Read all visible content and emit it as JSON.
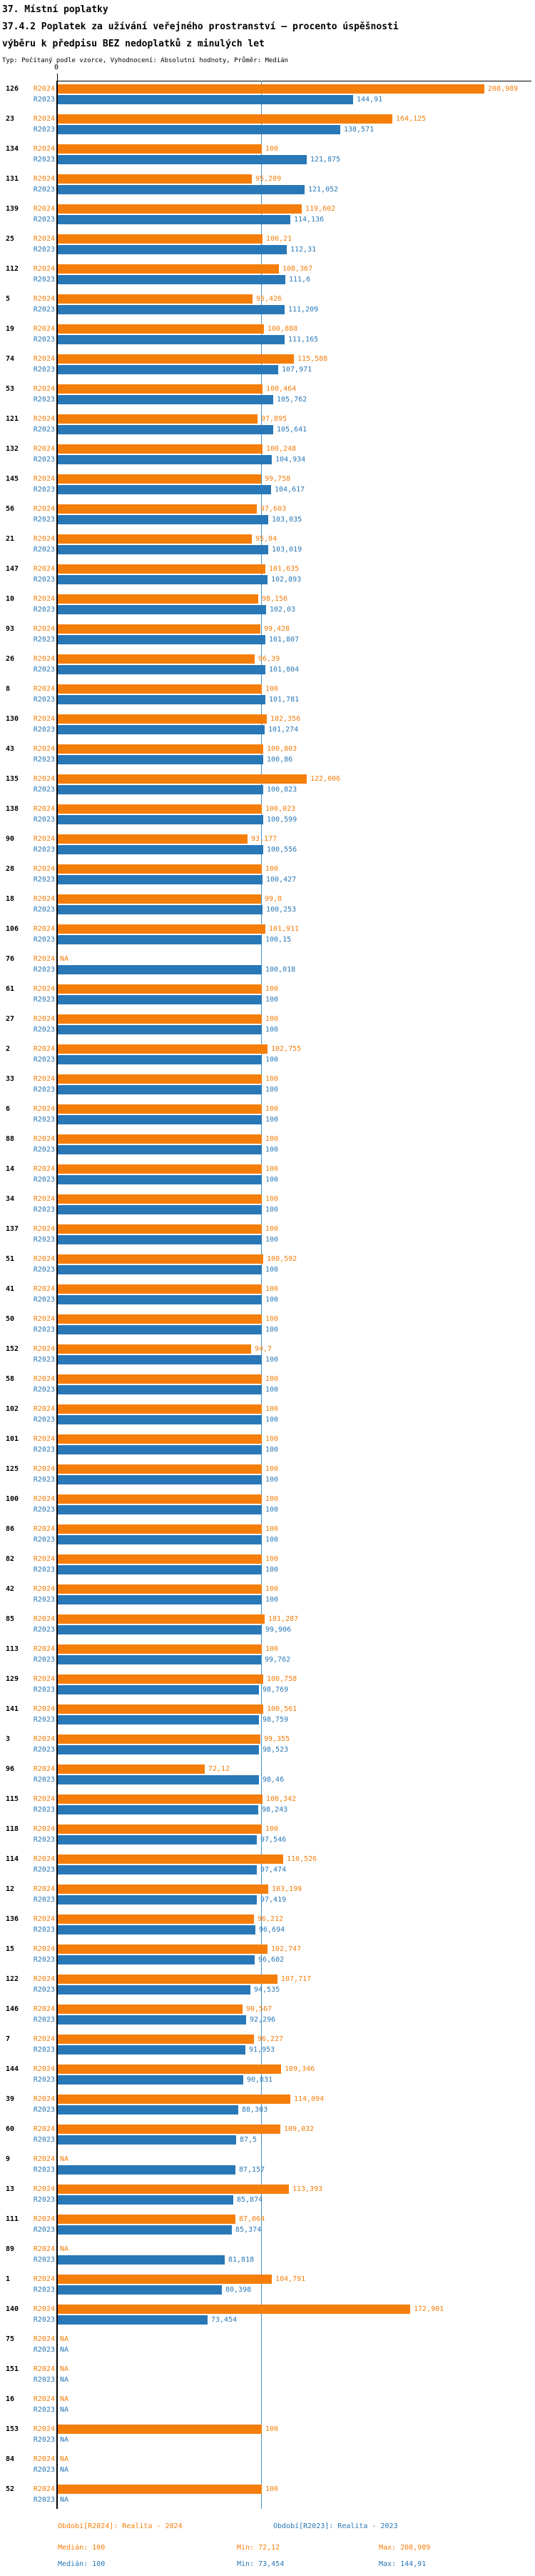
{
  "header": {
    "title": "37. Místní poplatky",
    "subtitle": "37.4.2 Poplatek za užívání veřejného prostranství – procento úspěšnosti výběru k předpisu BEZ nedoplatků z minulých let",
    "type_note": "Typ: Počítaný podle vzorce, Vyhodnocení: Absolutní hodnoty, Průměr: Medián"
  },
  "axis": {
    "zero_label": "0",
    "median_value": 100
  },
  "colors": {
    "r2024": "#f57e0b",
    "r2023": "#2878b8",
    "median_line": "#4393c3",
    "axis": "#000000"
  },
  "legend": {
    "period_2024": "Období[R2024]: Realita - 2024",
    "period_2023": "Období[R2023]: Realita - 2023",
    "median_2024": "Medián: 100",
    "min_2024": "Min: 72,12",
    "max_2024": "Max: 208,989",
    "median_2023": "Medián: 100",
    "min_2023": "Min: 73,454",
    "max_2023": "Max: 144,91"
  },
  "chart_data": {
    "type": "bar",
    "orientation": "horizontal",
    "title": "37.4.2 Poplatek za užívání veřejného prostranství – procento úspěšnosti výběru k předpisu BEZ nedoplatků z minulých let",
    "xlabel": "",
    "ylabel": "",
    "xlim": [
      0,
      235
    ],
    "median_reference_line": 100,
    "series_labels": [
      "R2024",
      "R2023"
    ],
    "na_text": "NA",
    "groups": [
      {
        "id": "126",
        "r2024": "208,989",
        "r2023": "144,91"
      },
      {
        "id": "23",
        "r2024": "164,125",
        "r2023": "138,571"
      },
      {
        "id": "134",
        "r2024": "100",
        "r2023": "121,875"
      },
      {
        "id": "131",
        "r2024": "95,209",
        "r2023": "121,052"
      },
      {
        "id": "139",
        "r2024": "119,602",
        "r2023": "114,136"
      },
      {
        "id": "25",
        "r2024": "100,21",
        "r2023": "112,31"
      },
      {
        "id": "112",
        "r2024": "108,367",
        "r2023": "111,6"
      },
      {
        "id": "5",
        "r2024": "95,426",
        "r2023": "111,209"
      },
      {
        "id": "19",
        "r2024": "100,888",
        "r2023": "111,165"
      },
      {
        "id": "74",
        "r2024": "115,588",
        "r2023": "107,971"
      },
      {
        "id": "53",
        "r2024": "100,464",
        "r2023": "105,762"
      },
      {
        "id": "121",
        "r2024": "97,895",
        "r2023": "105,641"
      },
      {
        "id": "132",
        "r2024": "100,248",
        "r2023": "104,934"
      },
      {
        "id": "145",
        "r2024": "99,758",
        "r2023": "104,617"
      },
      {
        "id": "56",
        "r2024": "97,603",
        "r2023": "103,035"
      },
      {
        "id": "21",
        "r2024": "95,04",
        "r2023": "103,019"
      },
      {
        "id": "147",
        "r2024": "101,635",
        "r2023": "102,893"
      },
      {
        "id": "10",
        "r2024": "98,156",
        "r2023": "102,03"
      },
      {
        "id": "93",
        "r2024": "99,428",
        "r2023": "101,807"
      },
      {
        "id": "26",
        "r2024": "96,39",
        "r2023": "101,804"
      },
      {
        "id": "8",
        "r2024": "100",
        "r2023": "101,781"
      },
      {
        "id": "130",
        "r2024": "102,356",
        "r2023": "101,274"
      },
      {
        "id": "43",
        "r2024": "100,803",
        "r2023": "100,86"
      },
      {
        "id": "135",
        "r2024": "122,006",
        "r2023": "100,823"
      },
      {
        "id": "138",
        "r2024": "100,023",
        "r2023": "100,599"
      },
      {
        "id": "90",
        "r2024": "93,177",
        "r2023": "100,556"
      },
      {
        "id": "28",
        "r2024": "100",
        "r2023": "100,427"
      },
      {
        "id": "18",
        "r2024": "99,8",
        "r2023": "100,253"
      },
      {
        "id": "106",
        "r2024": "101,911",
        "r2023": "100,15"
      },
      {
        "id": "76",
        "r2024": "NA",
        "r2023": "100,018"
      },
      {
        "id": "61",
        "r2024": "100",
        "r2023": "100"
      },
      {
        "id": "27",
        "r2024": "100",
        "r2023": "100"
      },
      {
        "id": "2",
        "r2024": "102,755",
        "r2023": "100"
      },
      {
        "id": "33",
        "r2024": "100",
        "r2023": "100"
      },
      {
        "id": "6",
        "r2024": "100",
        "r2023": "100"
      },
      {
        "id": "88",
        "r2024": "100",
        "r2023": "100"
      },
      {
        "id": "14",
        "r2024": "100",
        "r2023": "100"
      },
      {
        "id": "34",
        "r2024": "100",
        "r2023": "100"
      },
      {
        "id": "137",
        "r2024": "100",
        "r2023": "100"
      },
      {
        "id": "51",
        "r2024": "100,592",
        "r2023": "100"
      },
      {
        "id": "41",
        "r2024": "100",
        "r2023": "100"
      },
      {
        "id": "50",
        "r2024": "100",
        "r2023": "100"
      },
      {
        "id": "152",
        "r2024": "94,7",
        "r2023": "100"
      },
      {
        "id": "58",
        "r2024": "100",
        "r2023": "100"
      },
      {
        "id": "102",
        "r2024": "100",
        "r2023": "100"
      },
      {
        "id": "101",
        "r2024": "100",
        "r2023": "100"
      },
      {
        "id": "125",
        "r2024": "100",
        "r2023": "100"
      },
      {
        "id": "100",
        "r2024": "100",
        "r2023": "100"
      },
      {
        "id": "86",
        "r2024": "100",
        "r2023": "100"
      },
      {
        "id": "82",
        "r2024": "100",
        "r2023": "100"
      },
      {
        "id": "42",
        "r2024": "100",
        "r2023": "100"
      },
      {
        "id": "85",
        "r2024": "101,287",
        "r2023": "99,906"
      },
      {
        "id": "113",
        "r2024": "100",
        "r2023": "99,762"
      },
      {
        "id": "129",
        "r2024": "100,758",
        "r2023": "98,769"
      },
      {
        "id": "141",
        "r2024": "100,561",
        "r2023": "98,759"
      },
      {
        "id": "3",
        "r2024": "99,355",
        "r2023": "98,523"
      },
      {
        "id": "96",
        "r2024": "72,12",
        "r2023": "98,46"
      },
      {
        "id": "115",
        "r2024": "100,342",
        "r2023": "98,243"
      },
      {
        "id": "118",
        "r2024": "100",
        "r2023": "97,546"
      },
      {
        "id": "114",
        "r2024": "110,526",
        "r2023": "97,474"
      },
      {
        "id": "12",
        "r2024": "103,199",
        "r2023": "97,419"
      },
      {
        "id": "136",
        "r2024": "96,212",
        "r2023": "96,694"
      },
      {
        "id": "15",
        "r2024": "102,747",
        "r2023": "96,602"
      },
      {
        "id": "122",
        "r2024": "107,717",
        "r2023": "94,535"
      },
      {
        "id": "146",
        "r2024": "90,567",
        "r2023": "92,296"
      },
      {
        "id": "7",
        "r2024": "96,227",
        "r2023": "91,953"
      },
      {
        "id": "144",
        "r2024": "109,346",
        "r2023": "90,831"
      },
      {
        "id": "39",
        "r2024": "114,094",
        "r2023": "88,303"
      },
      {
        "id": "60",
        "r2024": "109,032",
        "r2023": "87,5"
      },
      {
        "id": "9",
        "r2024": "NA",
        "r2023": "87,157"
      },
      {
        "id": "13",
        "r2024": "113,393",
        "r2023": "85,874"
      },
      {
        "id": "111",
        "r2024": "87,064",
        "r2023": "85,374"
      },
      {
        "id": "89",
        "r2024": "NA",
        "r2023": "81,818"
      },
      {
        "id": "1",
        "r2024": "104,791",
        "r2023": "80,398"
      },
      {
        "id": "140",
        "r2024": "172,901",
        "r2023": "73,454"
      },
      {
        "id": "75",
        "r2024": "NA",
        "r2023": "NA"
      },
      {
        "id": "151",
        "r2024": "NA",
        "r2023": "NA"
      },
      {
        "id": "16",
        "r2024": "NA",
        "r2023": "NA"
      },
      {
        "id": "153",
        "r2024": "100",
        "r2023": "NA"
      },
      {
        "id": "84",
        "r2024": "NA",
        "r2023": "NA"
      },
      {
        "id": "52",
        "r2024": "100",
        "r2023": "NA"
      }
    ]
  }
}
